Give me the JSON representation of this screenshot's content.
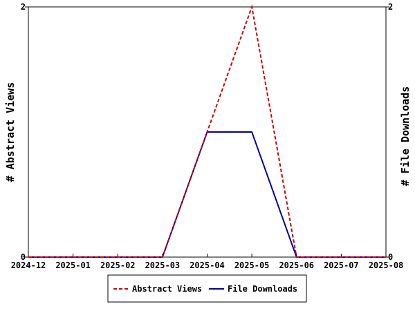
{
  "chart_data": {
    "type": "line",
    "title": "",
    "x": [
      "2024-12",
      "2025-01",
      "2025-02",
      "2025-03",
      "2025-04",
      "2025-05",
      "2025-06",
      "2025-07",
      "2025-08"
    ],
    "ylabel_left": "# Abstract Views",
    "ylabel_right": "# File Downloads",
    "ylim": [
      0,
      2
    ],
    "yticks": [
      "0",
      "2"
    ],
    "grid": false,
    "legend_position": "bottom-center",
    "series": [
      {
        "name": "Abstract Views",
        "values": [
          0,
          0,
          0,
          0,
          1,
          2,
          0,
          0,
          0
        ],
        "color": "#cc0000",
        "style": "dashed",
        "axis": "left"
      },
      {
        "name": "File Downloads",
        "values": [
          0,
          0,
          0,
          0,
          1,
          1,
          0,
          0,
          0
        ],
        "color": "#00009c",
        "style": "solid",
        "axis": "right"
      }
    ]
  }
}
